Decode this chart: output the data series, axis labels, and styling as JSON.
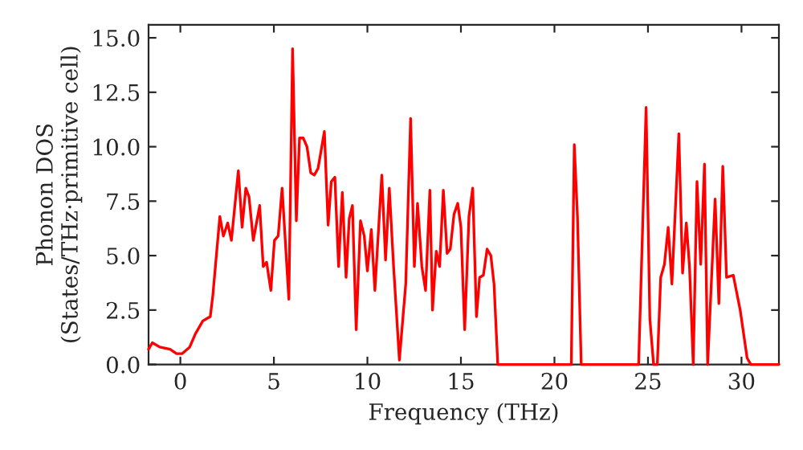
{
  "chart_data": {
    "type": "line",
    "xlabel": "Frequency (THz)",
    "ylabel": "Phonon DOS\n(States/THz·primitive cell)",
    "xlim": [
      -1.7,
      32
    ],
    "ylim": [
      0,
      15.6
    ],
    "xticks": [
      0,
      5,
      10,
      15,
      20,
      25,
      30
    ],
    "yticks": [
      {
        "value": 0,
        "label": "0.0"
      },
      {
        "value": 2.5,
        "label": "2.5"
      },
      {
        "value": 5,
        "label": "5.0"
      },
      {
        "value": 7.5,
        "label": "7.5"
      },
      {
        "value": 10,
        "label": "10.0"
      },
      {
        "value": 12.5,
        "label": "12.5"
      },
      {
        "value": 15,
        "label": "15.0"
      }
    ],
    "grid": false,
    "marker": "none",
    "line_style": "solid",
    "series": [
      {
        "color": "#ff0000",
        "x": [
          -1.7,
          -1.5,
          -1.1,
          -0.55,
          -0.2,
          0.1,
          0.5,
          0.8,
          1.2,
          1.6,
          1.74,
          2.11,
          2.3,
          2.53,
          2.73,
          3.1,
          3.3,
          3.5,
          3.67,
          3.9,
          4.24,
          4.43,
          4.61,
          4.84,
          5.03,
          5.23,
          5.44,
          5.8,
          6.0,
          6.2,
          6.37,
          6.57,
          6.77,
          6.97,
          7.16,
          7.36,
          7.7,
          7.9,
          8.07,
          8.26,
          8.46,
          8.66,
          8.86,
          9.03,
          9.2,
          9.4,
          9.63,
          9.83,
          10.0,
          10.21,
          10.4,
          10.77,
          10.97,
          11.17,
          11.4,
          11.71,
          12.05,
          12.31,
          12.51,
          12.68,
          12.91,
          13.11,
          13.34,
          13.48,
          13.68,
          13.86,
          14.06,
          14.26,
          14.43,
          14.63,
          14.83,
          15.0,
          15.2,
          15.43,
          15.63,
          15.83,
          16.0,
          16.2,
          16.4,
          16.6,
          16.77,
          16.97,
          20.9,
          21.06,
          21.23,
          21.43,
          24.5,
          24.7,
          24.9,
          25.1,
          25.3,
          25.5,
          25.68,
          25.88,
          26.08,
          26.28,
          26.65,
          26.85,
          27.05,
          27.22,
          27.42,
          27.62,
          27.82,
          28.02,
          28.19,
          28.59,
          28.79,
          29.0,
          29.2,
          29.56,
          29.93,
          30.3,
          30.5,
          32
        ],
        "values": [
          0.7,
          1.0,
          0.8,
          0.7,
          0.5,
          0.5,
          0.8,
          1.4,
          2.0,
          2.2,
          3.2,
          6.8,
          5.9,
          6.5,
          5.7,
          8.9,
          6.3,
          8.1,
          7.7,
          5.7,
          7.3,
          4.5,
          4.7,
          3.4,
          5.7,
          5.9,
          8.1,
          3.0,
          14.5,
          6.6,
          10.4,
          10.4,
          10.0,
          8.8,
          8.7,
          9.0,
          10.7,
          6.4,
          8.4,
          8.6,
          4.5,
          7.9,
          4.0,
          6.7,
          7.3,
          1.6,
          6.6,
          5.9,
          4.3,
          6.2,
          3.4,
          8.7,
          4.8,
          8.1,
          4.5,
          0.2,
          3.7,
          11.3,
          4.5,
          7.4,
          4.5,
          3.4,
          8.0,
          2.5,
          5.2,
          4.5,
          8.0,
          5.1,
          5.3,
          6.9,
          7.4,
          6.3,
          1.6,
          6.8,
          8.1,
          2.2,
          4.0,
          4.1,
          5.3,
          5.0,
          3.7,
          0,
          0,
          10.1,
          6.8,
          0,
          0,
          5.9,
          11.8,
          2.1,
          0,
          0,
          4.0,
          4.6,
          6.3,
          3.7,
          10.6,
          4.2,
          6.5,
          4.5,
          0,
          8.4,
          4.6,
          9.2,
          0,
          7.6,
          2.8,
          9.1,
          4.0,
          4.1,
          2.5,
          0.3,
          0,
          0
        ]
      }
    ]
  }
}
